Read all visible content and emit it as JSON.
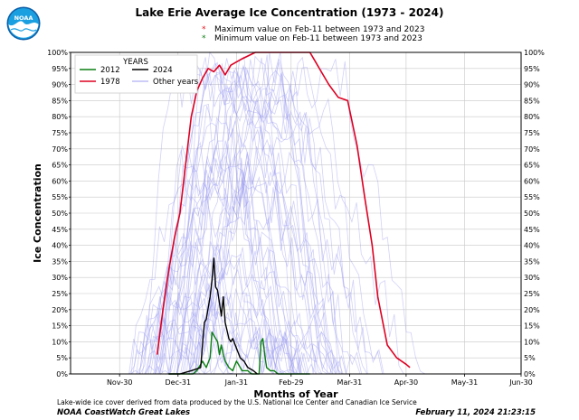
{
  "header": {
    "title": "Lake Erie Average Ice Concentration (1973 - 2024)",
    "note_max": "Maximum value on Feb-11 between 1973 and 2023",
    "note_min": "Minimum  value on Feb-11 between 1973 and 2023",
    "note_max_color": "#e8141c",
    "note_min_color": "#0a7f10"
  },
  "logo": {
    "text": "NOAA",
    "icon": "noaa-logo"
  },
  "footer": {
    "description": "Lake-wide ice cover derived from data produced by the U.S. National Ice Center and Canadian Ice Service",
    "source": "NOAA CoastWatch Great Lakes",
    "timestamp": "February 11, 2024 21:23:15"
  },
  "chart_data": {
    "type": "line",
    "title": "Lake Erie Average Ice Concentration (1973 - 2024)",
    "xlabel": "Months of Year",
    "ylabel": "Ice Concentration",
    "x_ticks": [
      "Nov-30",
      "Dec-31",
      "Jan-31",
      "Feb-29",
      "Mar-31",
      "Apr-30",
      "May-31",
      "Jun-30"
    ],
    "y_ticks": [
      "0%",
      "5%",
      "10%",
      "15%",
      "20%",
      "25%",
      "30%",
      "35%",
      "40%",
      "45%",
      "50%",
      "55%",
      "60%",
      "65%",
      "70%",
      "75%",
      "80%",
      "85%",
      "90%",
      "95%",
      "100%"
    ],
    "ylim": [
      0,
      100
    ],
    "grid": true,
    "legend": {
      "title": "YEARS",
      "placement": "top-left",
      "entries": [
        "2012",
        "2024",
        "1978",
        "Other years"
      ]
    },
    "colors": {
      "2012": "#0a7f10",
      "2024": "#000000",
      "1978": "#dd0022",
      "Other years": "#9b9bf0"
    },
    "series": [
      {
        "name": "1978",
        "x": [
          "Dec-20",
          "Dec-23",
          "Dec-26",
          "Dec-29",
          "Jan-01",
          "Jan-04",
          "Jan-07",
          "Jan-10",
          "Jan-13",
          "Jan-16",
          "Jan-19",
          "Jan-22",
          "Jan-25",
          "Jan-28",
          "Feb-03",
          "Feb-10",
          "Feb-17",
          "Feb-24",
          "Mar-01",
          "Mar-04",
          "Mar-07",
          "Mar-10",
          "Mar-13",
          "Mar-16",
          "Mar-20",
          "Mar-25",
          "Mar-30",
          "Apr-04",
          "Apr-08",
          "Apr-12",
          "Apr-15",
          "Apr-20",
          "Apr-25",
          "Apr-30",
          "May-02"
        ],
        "values": [
          6,
          20,
          32,
          42,
          50,
          65,
          80,
          88,
          92,
          95,
          94,
          96,
          93,
          96,
          98,
          100,
          100,
          100,
          100,
          100,
          100,
          100,
          97,
          94,
          90,
          86,
          85,
          71,
          55,
          40,
          24,
          9,
          5,
          3,
          2
        ]
      },
      {
        "name": "2024",
        "x": [
          "Dec-26",
          "Jan-01",
          "Jan-07",
          "Jan-12",
          "Jan-14",
          "Jan-15",
          "Jan-17",
          "Jan-18",
          "Jan-19",
          "Jan-20",
          "Jan-21",
          "Jan-22",
          "Jan-23",
          "Jan-24",
          "Jan-25",
          "Jan-27",
          "Jan-28",
          "Jan-29",
          "Jan-31",
          "Feb-02",
          "Feb-04",
          "Feb-06",
          "Feb-09",
          "Feb-11"
        ],
        "values": [
          0,
          0,
          1,
          2,
          16,
          17,
          24,
          29,
          36,
          27,
          26,
          22,
          18,
          24,
          16,
          11,
          10,
          11,
          8,
          5,
          4,
          2,
          1,
          0
        ]
      },
      {
        "name": "2012",
        "x": [
          "Dec-26",
          "Jan-01",
          "Jan-08",
          "Jan-10",
          "Jan-13",
          "Jan-15",
          "Jan-17",
          "Jan-18",
          "Jan-19",
          "Jan-21",
          "Jan-22",
          "Jan-23",
          "Jan-24",
          "Jan-25",
          "Jan-27",
          "Jan-29",
          "Jan-31",
          "Feb-03",
          "Feb-06",
          "Feb-08",
          "Feb-10",
          "Feb-12",
          "Feb-13",
          "Feb-14",
          "Feb-15",
          "Feb-16",
          "Feb-18",
          "Feb-20",
          "Feb-22",
          "Feb-25",
          "Mar-01",
          "Mar-10"
        ],
        "values": [
          0,
          0,
          0,
          1,
          4,
          2,
          5,
          13,
          12,
          10,
          6,
          9,
          6,
          4,
          2,
          1,
          4,
          1,
          1,
          0,
          0,
          0,
          10,
          11,
          6,
          2,
          1,
          1,
          0,
          0,
          0,
          0
        ]
      }
    ],
    "other_years": "many faint background series (1973-2023 excluding 2012 and 1978)"
  }
}
